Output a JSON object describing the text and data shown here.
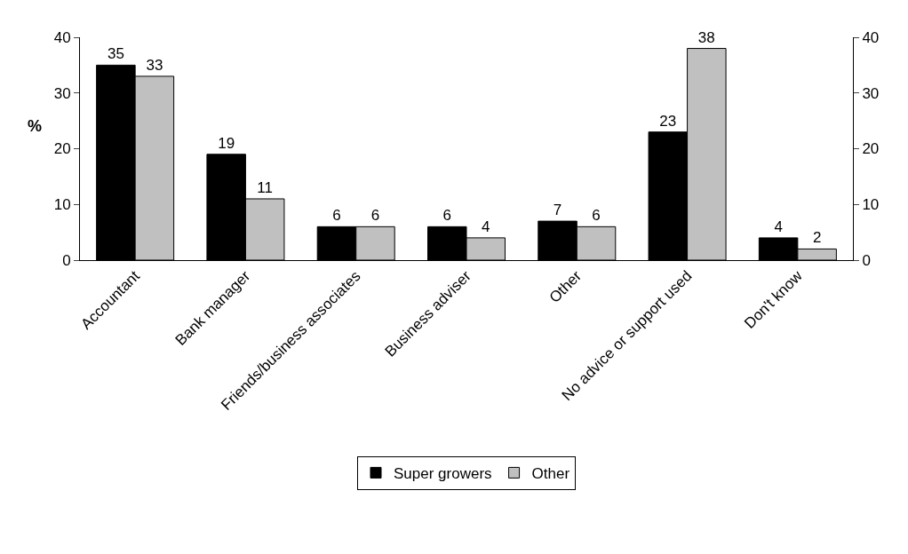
{
  "chart_data": {
    "type": "bar",
    "ylabel": "%",
    "categories": [
      "Accountant",
      "Bank manager",
      "Friends/business associates",
      "Business adviser",
      "Other",
      "No advice or support used",
      "Don't know"
    ],
    "series": [
      {
        "name": "Super growers",
        "color": "#000000",
        "values": [
          35,
          19,
          6,
          6,
          7,
          23,
          4
        ]
      },
      {
        "name": "Other",
        "color": "#c0c0c0",
        "values": [
          33,
          11,
          6,
          4,
          6,
          38,
          2
        ]
      }
    ],
    "ylim": [
      0,
      40
    ],
    "yticks": [
      0,
      10,
      20,
      30,
      40
    ],
    "y2lim": [
      0,
      40
    ],
    "y2ticks": [
      0,
      10,
      20,
      30,
      40
    ],
    "data_labels": true,
    "grid": false,
    "legend": "bottom"
  }
}
